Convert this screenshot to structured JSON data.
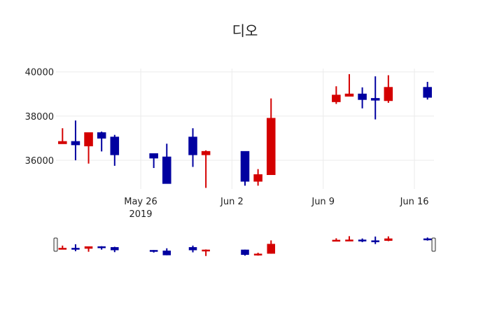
{
  "chart_data": {
    "type": "candlestick",
    "title": "디오",
    "xlabel": "",
    "ylabel": "",
    "ylim": [
      34700,
      40150
    ],
    "y_ticks": [
      36000,
      38000,
      40000
    ],
    "x_ticks": [
      {
        "date": "2019-05-26",
        "label": "May 26",
        "sublabel": "2019"
      },
      {
        "date": "2019-06-02",
        "label": "Jun 2",
        "sublabel": ""
      },
      {
        "date": "2019-06-09",
        "label": "Jun 9",
        "sublabel": ""
      },
      {
        "date": "2019-06-16",
        "label": "Jun 16",
        "sublabel": ""
      }
    ],
    "xlim": [
      "2019-05-19T12:00",
      "2019-06-17T12:00"
    ],
    "grid": true,
    "rangeslider": true,
    "colors": {
      "increasing": "#d40000",
      "decreasing": "#0000a0"
    },
    "x": [
      "2019-05-20",
      "2019-05-21",
      "2019-05-22",
      "2019-05-23",
      "2019-05-24",
      "2019-05-27",
      "2019-05-28",
      "2019-05-30",
      "2019-05-31",
      "2019-06-03",
      "2019-06-04",
      "2019-06-05",
      "2019-06-10",
      "2019-06-11",
      "2019-06-12",
      "2019-06-13",
      "2019-06-14",
      "2019-06-17"
    ],
    "open": [
      36750,
      36850,
      36650,
      37250,
      37050,
      36300,
      36150,
      37050,
      36250,
      36400,
      35050,
      35350,
      38650,
      38900,
      39000,
      38800,
      38700,
      39300
    ],
    "high": [
      37450,
      37800,
      37250,
      37300,
      37150,
      36300,
      36750,
      37450,
      36450,
      36400,
      35600,
      38800,
      39350,
      39900,
      39300,
      39800,
      39850,
      39550
    ],
    "low": [
      36750,
      36000,
      35850,
      36400,
      35750,
      35650,
      34950,
      35700,
      34750,
      34850,
      34850,
      35350,
      38550,
      38900,
      38350,
      37850,
      38600,
      38750
    ],
    "close": [
      36850,
      36700,
      37250,
      37000,
      36250,
      36100,
      34950,
      36250,
      36400,
      35050,
      35350,
      37900,
      38950,
      39000,
      38750,
      38750,
      39300,
      38850
    ]
  }
}
